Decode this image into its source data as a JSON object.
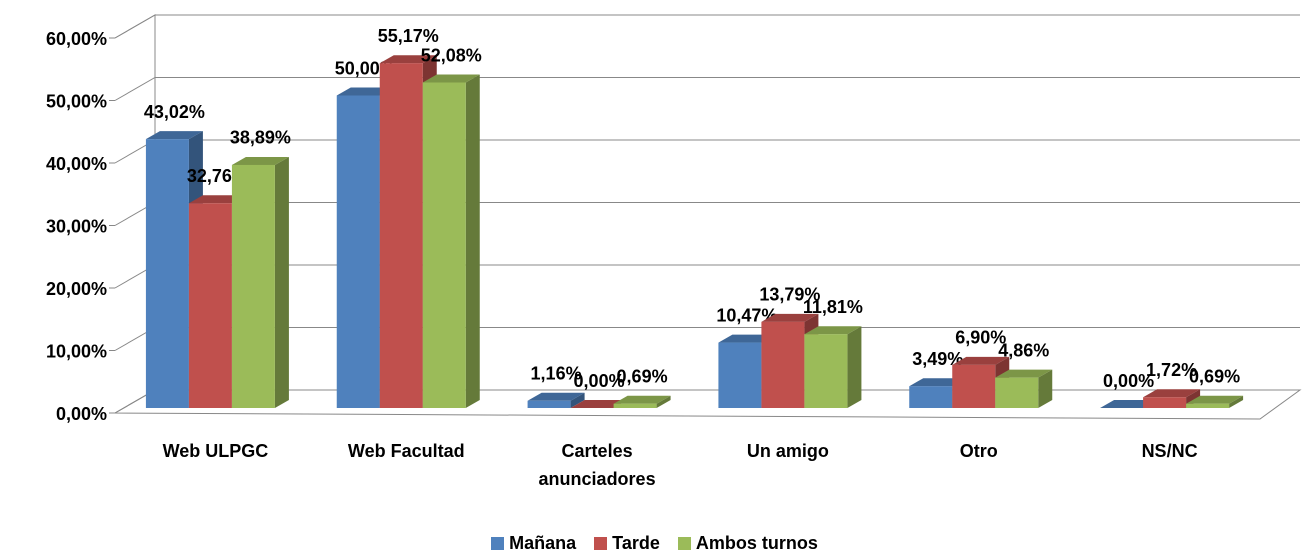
{
  "chart_data": {
    "type": "bar3d",
    "categories": [
      "Web ULPGC",
      "Web Facultad",
      "Carteles anunciadores",
      "Un amigo",
      "Otro",
      "NS/NC"
    ],
    "series": [
      {
        "name": "Mañana",
        "color": "#4f81bd",
        "values": [
          43.02,
          50.0,
          1.16,
          10.47,
          3.49,
          0.0
        ],
        "value_labels": [
          "43,02%",
          "50,00%",
          "1,16%",
          "10,47%",
          "3,49%",
          "0,00%"
        ]
      },
      {
        "name": "Tarde",
        "color": "#c0504d",
        "values": [
          32.76,
          55.17,
          0.0,
          13.79,
          6.9,
          1.72
        ],
        "value_labels": [
          "32,76%",
          "55,17%",
          "0,00%",
          "13,79%",
          "6,90%",
          "1,72%"
        ]
      },
      {
        "name": "Ambos turnos",
        "color": "#9bbb59",
        "values": [
          38.89,
          52.08,
          0.69,
          11.81,
          4.86,
          0.69
        ],
        "value_labels": [
          "38,89%",
          "52,08%",
          "0,69%",
          "11,81%",
          "4,86%",
          "0,69%"
        ]
      }
    ],
    "ylim": [
      0,
      60
    ],
    "yticks": [
      {
        "value": 0,
        "label": "0,00%"
      },
      {
        "value": 10,
        "label": "10,00%"
      },
      {
        "value": 20,
        "label": "20,00%"
      },
      {
        "value": 30,
        "label": "30,00%"
      },
      {
        "value": 40,
        "label": "40,00%"
      },
      {
        "value": 50,
        "label": "50,00%"
      },
      {
        "value": 60,
        "label": "60,00%"
      }
    ],
    "grid": true,
    "legend": "bottom"
  }
}
